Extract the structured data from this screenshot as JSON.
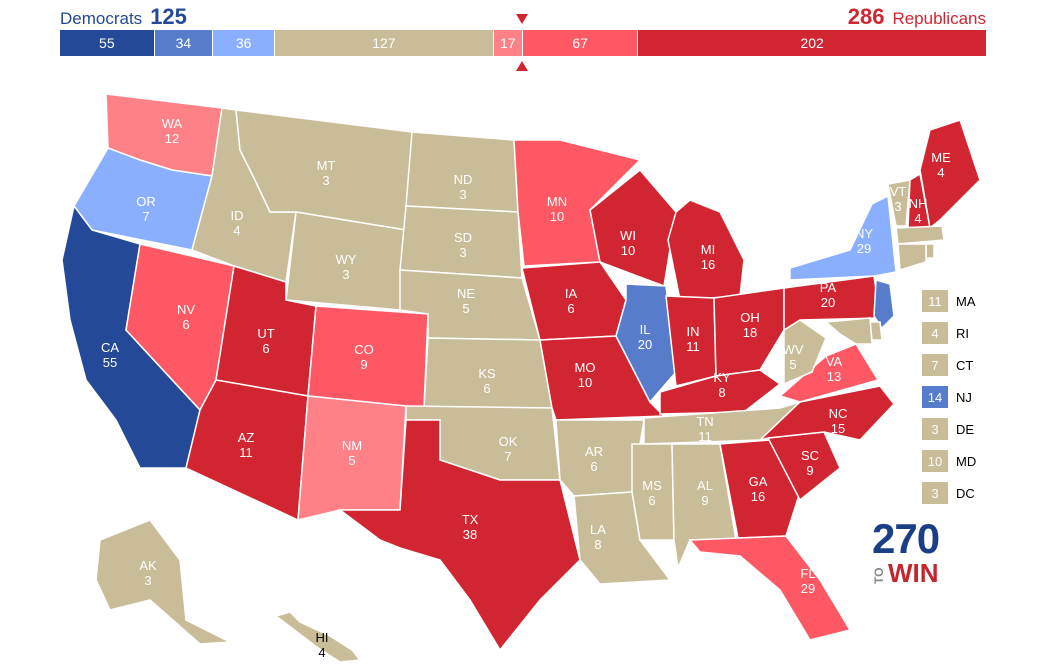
{
  "header": {
    "dem_label": "Democrats",
    "dem_total": "125",
    "rep_total": "286",
    "rep_label": "Republicans"
  },
  "colors": {
    "safe_d": "#244999",
    "likely_d": "#577ccc",
    "lean_d": "#8aafff",
    "tossup": "#c9bc98",
    "lean_r": "#ff8188",
    "likely_r": "#ff5865",
    "safe_r": "#d22532"
  },
  "bar": [
    {
      "value": "55",
      "category": "safe_d",
      "weight": 55
    },
    {
      "value": "34",
      "category": "likely_d",
      "weight": 34
    },
    {
      "value": "36",
      "category": "lean_d",
      "weight": 36
    },
    {
      "value": "127",
      "category": "tossup",
      "weight": 127
    },
    {
      "value": "17",
      "category": "lean_r",
      "weight": 17
    },
    {
      "value": "67",
      "category": "likely_r",
      "weight": 67
    },
    {
      "value": "202",
      "category": "safe_r",
      "weight": 202
    }
  ],
  "states": [
    {
      "abbr": "WA",
      "votes": "12",
      "category": "lean_r"
    },
    {
      "abbr": "OR",
      "votes": "7",
      "category": "lean_d"
    },
    {
      "abbr": "CA",
      "votes": "55",
      "category": "safe_d"
    },
    {
      "abbr": "NV",
      "votes": "6",
      "category": "likely_r"
    },
    {
      "abbr": "ID",
      "votes": "4",
      "category": "tossup"
    },
    {
      "abbr": "MT",
      "votes": "3",
      "category": "tossup"
    },
    {
      "abbr": "WY",
      "votes": "3",
      "category": "tossup"
    },
    {
      "abbr": "UT",
      "votes": "6",
      "category": "safe_r"
    },
    {
      "abbr": "AZ",
      "votes": "11",
      "category": "safe_r"
    },
    {
      "abbr": "CO",
      "votes": "9",
      "category": "likely_r"
    },
    {
      "abbr": "NM",
      "votes": "5",
      "category": "lean_r"
    },
    {
      "abbr": "ND",
      "votes": "3",
      "category": "tossup"
    },
    {
      "abbr": "SD",
      "votes": "3",
      "category": "tossup"
    },
    {
      "abbr": "NE",
      "votes": "5",
      "category": "tossup"
    },
    {
      "abbr": "KS",
      "votes": "6",
      "category": "tossup"
    },
    {
      "abbr": "OK",
      "votes": "7",
      "category": "tossup"
    },
    {
      "abbr": "TX",
      "votes": "38",
      "category": "safe_r"
    },
    {
      "abbr": "MN",
      "votes": "10",
      "category": "likely_r"
    },
    {
      "abbr": "IA",
      "votes": "6",
      "category": "safe_r"
    },
    {
      "abbr": "MO",
      "votes": "10",
      "category": "safe_r"
    },
    {
      "abbr": "AR",
      "votes": "6",
      "category": "tossup"
    },
    {
      "abbr": "LA",
      "votes": "8",
      "category": "tossup"
    },
    {
      "abbr": "WI",
      "votes": "10",
      "category": "safe_r"
    },
    {
      "abbr": "IL",
      "votes": "20",
      "category": "likely_d"
    },
    {
      "abbr": "MI",
      "votes": "16",
      "category": "safe_r"
    },
    {
      "abbr": "IN",
      "votes": "11",
      "category": "safe_r"
    },
    {
      "abbr": "OH",
      "votes": "18",
      "category": "safe_r"
    },
    {
      "abbr": "KY",
      "votes": "8",
      "category": "safe_r"
    },
    {
      "abbr": "TN",
      "votes": "11",
      "category": "tossup"
    },
    {
      "abbr": "MS",
      "votes": "6",
      "category": "tossup"
    },
    {
      "abbr": "AL",
      "votes": "9",
      "category": "tossup"
    },
    {
      "abbr": "GA",
      "votes": "16",
      "category": "safe_r"
    },
    {
      "abbr": "FL",
      "votes": "29",
      "category": "likely_r"
    },
    {
      "abbr": "SC",
      "votes": "9",
      "category": "safe_r"
    },
    {
      "abbr": "NC",
      "votes": "15",
      "category": "safe_r"
    },
    {
      "abbr": "VA",
      "votes": "13",
      "category": "likely_r"
    },
    {
      "abbr": "WV",
      "votes": "5",
      "category": "tossup"
    },
    {
      "abbr": "PA",
      "votes": "20",
      "category": "safe_r"
    },
    {
      "abbr": "NY",
      "votes": "29",
      "category": "lean_d"
    },
    {
      "abbr": "VT",
      "votes": "3",
      "category": "tossup"
    },
    {
      "abbr": "NH",
      "votes": "4",
      "category": "safe_r"
    },
    {
      "abbr": "ME",
      "votes": "4",
      "category": "safe_r"
    },
    {
      "abbr": "AK",
      "votes": "3",
      "category": "tossup"
    },
    {
      "abbr": "HI",
      "votes": "4",
      "category": "tossup"
    }
  ],
  "small_states": [
    {
      "abbr": "MA",
      "votes": "11",
      "category": "tossup"
    },
    {
      "abbr": "RI",
      "votes": "4",
      "category": "tossup"
    },
    {
      "abbr": "CT",
      "votes": "7",
      "category": "tossup"
    },
    {
      "abbr": "NJ",
      "votes": "14",
      "category": "likely_d"
    },
    {
      "abbr": "DE",
      "votes": "3",
      "category": "tossup"
    },
    {
      "abbr": "MD",
      "votes": "10",
      "category": "tossup"
    },
    {
      "abbr": "DC",
      "votes": "3",
      "category": "tossup"
    }
  ],
  "logo": {
    "top": "270",
    "mid": "TO",
    "bottom": "WIN"
  }
}
